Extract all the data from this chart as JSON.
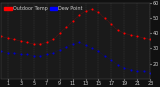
{
  "background_color": "#111111",
  "plot_bg_color": "#1a1a1a",
  "grid_color": "#555555",
  "text_color": "#cccccc",
  "legend_temp_color": "#ff0000",
  "legend_dew_color": "#0000ff",
  "temp_color": "#ff0000",
  "dew_color": "#0000cc",
  "temp_data": [
    [
      0,
      38
    ],
    [
      1,
      37
    ],
    [
      2,
      36
    ],
    [
      3,
      35
    ],
    [
      4,
      34
    ],
    [
      5,
      33
    ],
    [
      6,
      33
    ],
    [
      7,
      34
    ],
    [
      8,
      36
    ],
    [
      9,
      40
    ],
    [
      10,
      44
    ],
    [
      11,
      48
    ],
    [
      12,
      52
    ],
    [
      13,
      55
    ],
    [
      14,
      56
    ],
    [
      15,
      54
    ],
    [
      16,
      50
    ],
    [
      17,
      46
    ],
    [
      18,
      42
    ],
    [
      19,
      40
    ],
    [
      20,
      39
    ],
    [
      21,
      38
    ],
    [
      22,
      37
    ],
    [
      23,
      36
    ]
  ],
  "dew_data": [
    [
      0,
      28
    ],
    [
      1,
      27
    ],
    [
      2,
      27
    ],
    [
      3,
      26
    ],
    [
      4,
      26
    ],
    [
      5,
      25
    ],
    [
      6,
      25
    ],
    [
      7,
      26
    ],
    [
      8,
      27
    ],
    [
      9,
      29
    ],
    [
      10,
      31
    ],
    [
      11,
      33
    ],
    [
      12,
      34
    ],
    [
      13,
      32
    ],
    [
      14,
      30
    ],
    [
      15,
      28
    ],
    [
      16,
      25
    ],
    [
      17,
      22
    ],
    [
      18,
      19
    ],
    [
      19,
      17
    ],
    [
      20,
      16
    ],
    [
      21,
      15
    ],
    [
      22,
      15
    ],
    [
      23,
      14
    ]
  ],
  "xlim": [
    0,
    23
  ],
  "ylim": [
    10,
    60
  ],
  "xticks": [
    1,
    3,
    5,
    7,
    9,
    11,
    13,
    15,
    17,
    19,
    21,
    23
  ],
  "yticks": [
    20,
    30,
    40,
    50,
    60
  ],
  "tick_fontsize": 3.5,
  "marker_size": 1.5,
  "legend_fontsize": 3.5
}
